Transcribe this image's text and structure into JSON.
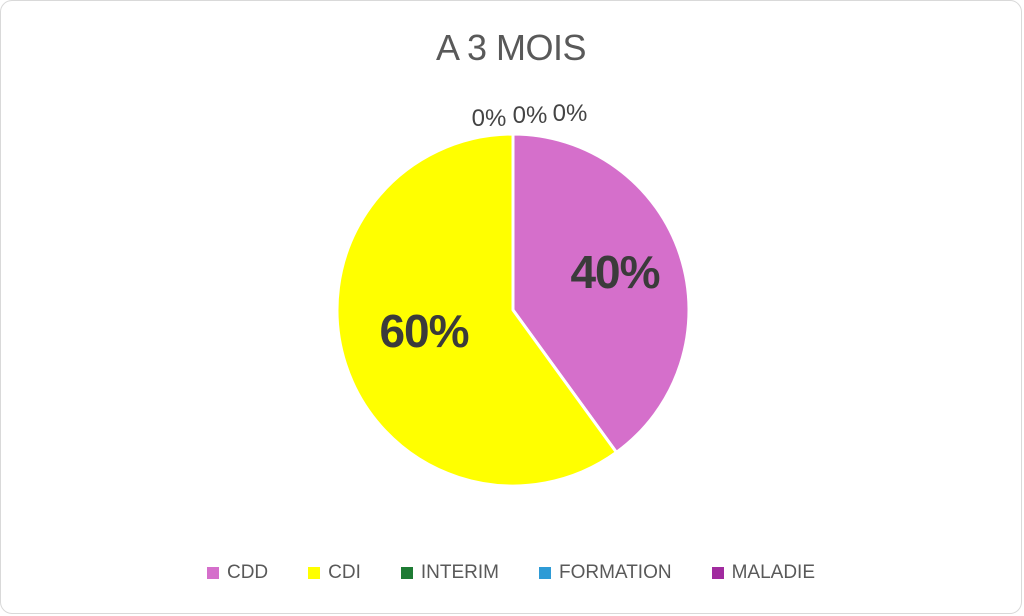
{
  "chart_data": {
    "type": "pie",
    "title": "A 3 MOIS",
    "series": [
      {
        "name": "CDD",
        "value": 40,
        "color": "#D56FCB",
        "label": "40%"
      },
      {
        "name": "CDI",
        "value": 60,
        "color": "#FFFF00",
        "label": "60%"
      },
      {
        "name": "INTERIM",
        "value": 0,
        "color": "#1E7B34",
        "label": "0%"
      },
      {
        "name": "FORMATION",
        "value": 0,
        "color": "#2E9BD6",
        "label": "0%"
      },
      {
        "name": "MALADIE",
        "value": 0,
        "color": "#A12B9F",
        "label": "0%"
      }
    ],
    "start_angle_deg": 0,
    "direction": "clockwise",
    "legend_position": "bottom",
    "slice_border_color": "#FFFFFF",
    "title_color": "#595959",
    "data_label_color": "#3B3B3B"
  }
}
